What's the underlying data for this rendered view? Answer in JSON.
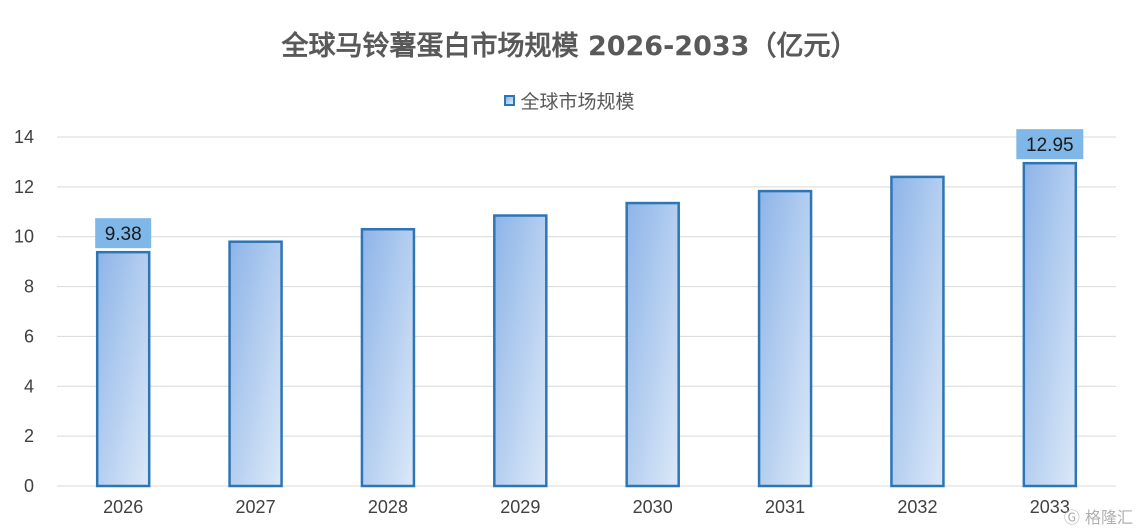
{
  "chart_data": {
    "type": "bar",
    "title": "全球马铃薯蛋白市场规模 2026-2033（亿元）",
    "categories": [
      "2026",
      "2027",
      "2028",
      "2029",
      "2030",
      "2031",
      "2032",
      "2033"
    ],
    "series": [
      {
        "name": "全球市场规模",
        "values": [
          9.38,
          9.8,
          10.3,
          10.85,
          11.35,
          11.83,
          12.4,
          12.95
        ]
      }
    ],
    "data_labels": {
      "0": "9.38",
      "7": "12.95"
    },
    "ylim": [
      0,
      14
    ],
    "yticks": [
      0,
      2,
      4,
      6,
      8,
      10,
      12,
      14
    ],
    "grid": true,
    "legend_position": "top-center",
    "colors": {
      "bar_border": "#2e75b6",
      "bar_fill_start": "#8db4e8",
      "bar_fill_end": "#dce9f8",
      "label_bg": "#7eb7e8",
      "grid": "#d9d9d9",
      "axis_text": "#404040"
    }
  },
  "watermark": "格隆汇",
  "watermark_icon": "gelonghui-logo-icon"
}
